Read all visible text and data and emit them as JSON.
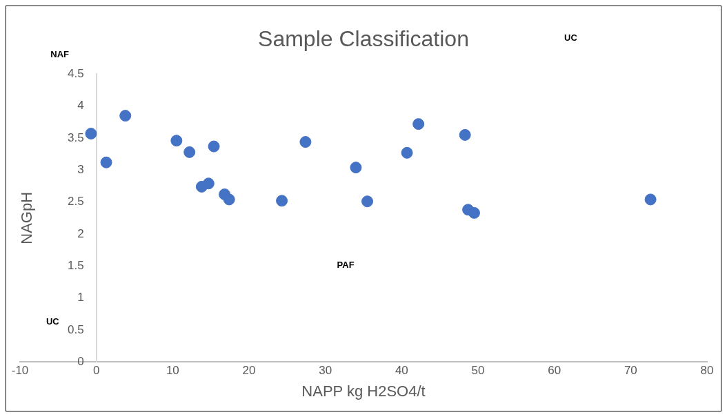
{
  "chart_data": {
    "type": "scatter",
    "title": "Sample Classification",
    "xlabel": "NAPP kg H2SO4/t",
    "ylabel": "NAGpH",
    "x": [
      -0.7,
      1.3,
      3.8,
      10.5,
      12.2,
      15.4,
      13.8,
      14.7,
      16.8,
      17.4,
      24.3,
      27.4,
      34.0,
      35.5,
      40.7,
      42.2,
      48.3,
      48.7,
      49.5,
      72.6
    ],
    "series": [
      {
        "color": "#4472c4",
        "values": [
          3.57,
          3.12,
          3.85,
          3.46,
          3.28,
          3.37,
          2.74,
          2.79,
          2.62,
          2.54,
          2.52,
          3.44,
          3.04,
          2.51,
          3.27,
          3.72,
          3.55,
          2.38,
          2.33,
          2.54
        ]
      }
    ],
    "xlim": [
      -10,
      80
    ],
    "xticks": [
      -10,
      0,
      10,
      20,
      30,
      40,
      50,
      60,
      70,
      80
    ],
    "ylim": [
      0,
      4.5
    ],
    "yticks": [
      0,
      0.5,
      1,
      1.5,
      2,
      2.5,
      3,
      3.5,
      4,
      4.5
    ],
    "annotations": [
      "NAF",
      "UC",
      "PAF",
      "UC"
    ],
    "grid": false,
    "legend": false,
    "marker": "circle"
  }
}
